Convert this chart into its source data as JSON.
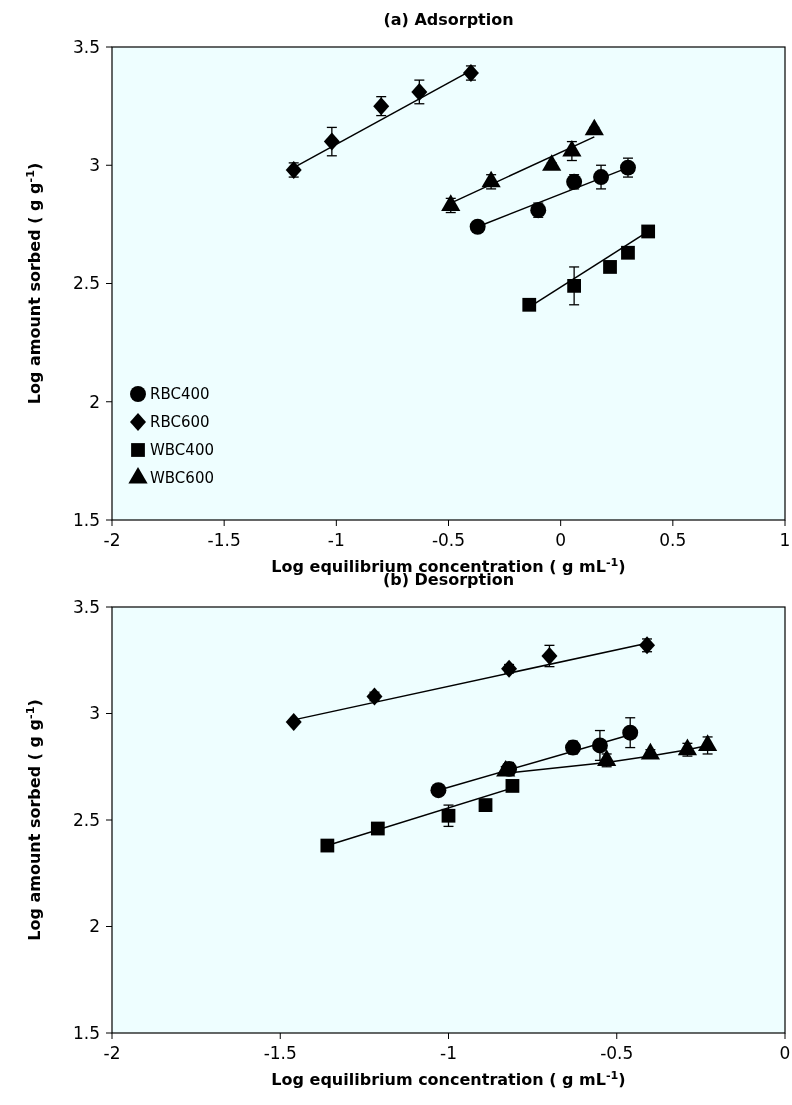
{
  "chart_data": [
    {
      "type": "scatter",
      "title": "(a) Adsorption",
      "xlabel": "Log equilibrium concentration (   g mL$^{-1}$)",
      "ylabel": "Log amount sorbed (   g g$^{-1}$)",
      "xlim": [
        -2,
        1
      ],
      "ylim": [
        1.5,
        3.5
      ],
      "xticks": [
        -2,
        -1.5,
        -1,
        -0.5,
        0,
        0.5,
        1
      ],
      "yticks": [
        1.5,
        2,
        2.5,
        3,
        3.5
      ],
      "grid": false,
      "legend": "bottom left",
      "series": [
        {
          "name": "RBC400",
          "marker": "circle",
          "color": "#000000",
          "x": [
            -0.37,
            -0.1,
            0.06,
            0.18,
            0.3
          ],
          "values": [
            2.74,
            2.81,
            2.93,
            2.95,
            2.99
          ],
          "errors": [
            0.01,
            0.03,
            0.03,
            0.05,
            0.04
          ]
        },
        {
          "name": "RBC600",
          "marker": "diamond",
          "color": "#000000",
          "x": [
            -1.19,
            -1.02,
            -0.8,
            -0.63,
            -0.4
          ],
          "values": [
            2.98,
            3.1,
            3.25,
            3.31,
            3.39
          ],
          "errors": [
            0.03,
            0.06,
            0.04,
            0.05,
            0.03
          ]
        },
        {
          "name": "WBC400",
          "marker": "square",
          "color": "#000000",
          "x": [
            -0.14,
            0.06,
            0.22,
            0.3,
            0.39
          ],
          "values": [
            2.41,
            2.49,
            2.57,
            2.63,
            2.72
          ],
          "errors": [
            0.01,
            0.08,
            0.01,
            0.01,
            0.02
          ]
        },
        {
          "name": "WBC600",
          "marker": "triangle",
          "color": "#000000",
          "x": [
            -0.49,
            -0.31,
            -0.04,
            0.05,
            0.15
          ],
          "values": [
            2.83,
            2.93,
            3.0,
            3.06,
            3.15
          ],
          "errors": [
            0.03,
            0.03,
            0.01,
            0.04,
            0.01
          ]
        },
        {
          "type": "line",
          "marker": "none",
          "color": "#000000",
          "x": [
            -0.37,
            0.3
          ],
          "values": [
            2.74,
            2.99
          ]
        },
        {
          "type": "line",
          "marker": "none",
          "color": "#000000",
          "x": [
            -1.19,
            -0.4
          ],
          "values": [
            2.99,
            3.4
          ]
        },
        {
          "type": "line",
          "marker": "none",
          "color": "#000000",
          "x": [
            -0.14,
            0.39
          ],
          "values": [
            2.4,
            2.72
          ]
        },
        {
          "type": "line",
          "marker": "none",
          "color": "#000000",
          "x": [
            -0.49,
            0.15
          ],
          "values": [
            2.84,
            3.12
          ]
        }
      ]
    },
    {
      "type": "scatter",
      "title": "(b) Desorption",
      "xlabel": "Log equilibrium concentration (   g mL$^{-1}$)",
      "ylabel": "Log amount sorbed (   g g$^{-1}$)",
      "xlim": [
        -2,
        0
      ],
      "ylim": [
        1.5,
        3.5
      ],
      "xticks": [
        -2,
        -1.5,
        -1,
        -0.5,
        0
      ],
      "yticks": [
        1.5,
        2,
        2.5,
        3,
        3.5
      ],
      "grid": false,
      "series": [
        {
          "marker": "circle",
          "color": "#000000",
          "x": [
            -1.03,
            -0.82,
            -0.63,
            -0.55,
            -0.46
          ],
          "values": [
            2.64,
            2.74,
            2.84,
            2.85,
            2.91
          ],
          "errors": [
            0.02,
            0.03,
            0.03,
            0.07,
            0.07
          ]
        },
        {
          "marker": "diamond",
          "color": "#000000",
          "x": [
            -1.46,
            -1.22,
            -0.82,
            -0.7,
            -0.41
          ],
          "values": [
            2.96,
            3.08,
            3.21,
            3.27,
            3.32
          ],
          "errors": [
            0.01,
            0.02,
            0.02,
            0.05,
            0.03
          ]
        },
        {
          "marker": "square",
          "color": "#000000",
          "x": [
            -1.36,
            -1.21,
            -1.0,
            -0.89,
            -0.81
          ],
          "values": [
            2.38,
            2.46,
            2.52,
            2.57,
            2.66
          ],
          "errors": [
            0.01,
            0.02,
            0.05,
            0.01,
            0.01
          ]
        },
        {
          "marker": "triangle",
          "color": "#000000",
          "x": [
            -0.83,
            -0.53,
            -0.4,
            -0.29,
            -0.23
          ],
          "values": [
            2.73,
            2.78,
            2.81,
            2.83,
            2.85
          ],
          "errors": [
            0.02,
            0.03,
            0.02,
            0.03,
            0.04
          ]
        },
        {
          "type": "line",
          "marker": "none",
          "color": "#000000",
          "x": [
            -1.03,
            -0.46
          ],
          "values": [
            2.64,
            2.9
          ]
        },
        {
          "type": "line",
          "marker": "none",
          "color": "#000000",
          "x": [
            -1.46,
            -0.41
          ],
          "values": [
            2.97,
            3.33
          ]
        },
        {
          "type": "line",
          "marker": "none",
          "color": "#000000",
          "x": [
            -1.36,
            -0.81
          ],
          "values": [
            2.38,
            2.65
          ]
        },
        {
          "type": "line",
          "marker": "none",
          "color": "#000000",
          "x": [
            -0.83,
            -0.53,
            -0.4,
            -0.29,
            -0.23
          ],
          "values": [
            2.72,
            2.77,
            2.8,
            2.83,
            2.85
          ]
        }
      ]
    }
  ]
}
